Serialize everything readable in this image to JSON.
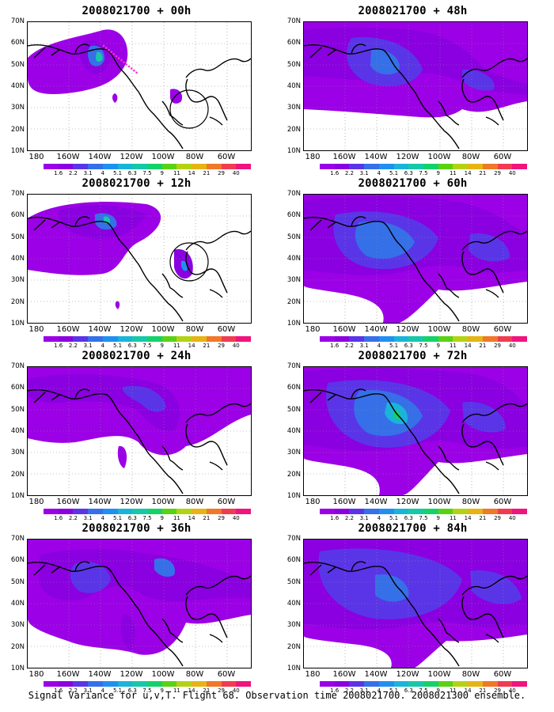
{
  "panels": [
    {
      "title": "2008021700 + 00h"
    },
    {
      "title": "2008021700 + 12h"
    },
    {
      "title": "2008021700 + 24h"
    },
    {
      "title": "2008021700 + 36h"
    },
    {
      "title": "2008021700 + 48h"
    },
    {
      "title": "2008021700 + 60h"
    },
    {
      "title": "2008021700 + 72h"
    },
    {
      "title": "2008021700 + 84h"
    }
  ],
  "lat_labels": [
    "70N",
    "60N",
    "50N",
    "40N",
    "30N",
    "20N",
    "10N"
  ],
  "lon_labels": [
    "180",
    "160W",
    "140W",
    "120W",
    "100W",
    "80W",
    "60W"
  ],
  "colorbar": {
    "labels": [
      "1.6",
      "2.2",
      "3.1",
      "4",
      "5.1",
      "6.3",
      "7.5",
      "9",
      "11",
      "14",
      "21",
      "29",
      "40"
    ],
    "colors": [
      "#9b00e6",
      "#8a00e0",
      "#5a35e8",
      "#3570e8",
      "#2090f0",
      "#1ab4d8",
      "#17c8a8",
      "#14d26a",
      "#5ad214",
      "#b4d214",
      "#e6b414",
      "#f07828",
      "#f03c50",
      "#f0147d"
    ]
  },
  "caption": "Signal Variance for u,v,T. Flight 68. Observation time 2008021700. 2008021300 ensemble."
}
